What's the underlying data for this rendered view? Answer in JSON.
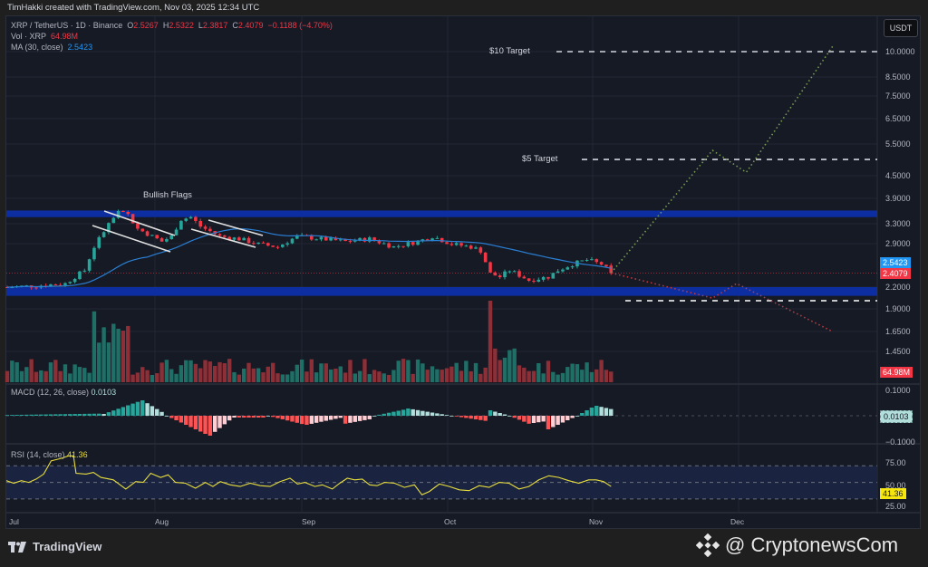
{
  "header": {
    "created_line": "TimHakki created with TradingView.com, Nov 03, 2025 12:34 UTC"
  },
  "legend": {
    "symbol": "XRP / TetherUS · 1D · Binance",
    "o_label": "O",
    "o": "2.5267",
    "h_label": "H",
    "h": "2.5322",
    "l_label": "L",
    "l": "2.3817",
    "c_label": "C",
    "c": "2.4079",
    "change": "−0.1188 (−4.70%)",
    "vol_label": "Vol · XRP",
    "vol": "64.98M",
    "ma_label": "MA (30, close)",
    "ma": "2.5423"
  },
  "currency_button": "USDT",
  "price_axis": {
    "ticks": [
      "10.0000",
      "8.5000",
      "7.5000",
      "6.5000",
      "5.5000",
      "4.5000",
      "3.9000",
      "3.3000",
      "2.9000",
      "2.2000",
      "1.9000",
      "1.6500",
      "1.4500"
    ],
    "badge_ma": "2.5423",
    "badge_close": "2.4079",
    "badge_volume": "64.98M"
  },
  "macd": {
    "title": "MACD (12, 26, close)",
    "value": "0.0103",
    "axis_ticks": [
      "0.1000",
      "−0.1000"
    ],
    "badge": "0.0103"
  },
  "rsi": {
    "title": "RSI (14, close)",
    "value": "41.36",
    "axis_ticks": [
      "75.00",
      "50.00",
      "25.00"
    ],
    "badge": "41.36"
  },
  "time_axis": [
    "Jul",
    "Aug",
    "Sep",
    "Oct",
    "Nov",
    "Dec"
  ],
  "annotations": {
    "bullish_flags": "Bullish Flags",
    "target_10": "$10 Target",
    "target_5": "$5 Target"
  },
  "footer": {
    "brand": "TradingView",
    "watermark": "@ CryptonewsCom"
  },
  "colors": {
    "up": "#26a69a",
    "down": "#f23645",
    "ma": "#2962ff",
    "zone": "#0d2fa8",
    "rsi": "#e8de3c",
    "bg": "#161a25"
  },
  "chart_data": {
    "type": "candlestick",
    "title": "XRP / TetherUS · 1D · Binance",
    "xlabel": "",
    "ylabel": "USDT",
    "x_ticks": [
      "Jul",
      "Aug",
      "Sep",
      "Oct",
      "Nov",
      "Dec"
    ],
    "y_scale": "log",
    "ylim": [
      1.4,
      11
    ],
    "last_bar": {
      "open": 2.5267,
      "high": 2.5322,
      "low": 2.3817,
      "close": 2.4079,
      "change": -0.1188,
      "change_pct": -4.7,
      "volume": "64.98M"
    },
    "ma30_last": 2.5423,
    "price_path": [
      [
        0,
        2.2
      ],
      [
        6,
        2.22
      ],
      [
        12,
        2.25
      ],
      [
        16,
        2.45
      ],
      [
        18,
        2.85
      ],
      [
        21,
        3.3
      ],
      [
        23,
        3.55
      ],
      [
        25,
        3.5
      ],
      [
        27,
        3.2
      ],
      [
        30,
        3.05
      ],
      [
        32,
        2.95
      ],
      [
        34,
        3.05
      ],
      [
        36,
        3.4
      ],
      [
        38,
        3.45
      ],
      [
        40,
        3.25
      ],
      [
        44,
        3.05
      ],
      [
        48,
        3.0
      ],
      [
        52,
        2.9
      ],
      [
        56,
        2.85
      ],
      [
        60,
        3.05
      ],
      [
        65,
        3.0
      ],
      [
        70,
        2.95
      ],
      [
        75,
        3.0
      ],
      [
        80,
        2.85
      ],
      [
        85,
        2.95
      ],
      [
        88,
        3.05
      ],
      [
        92,
        2.9
      ],
      [
        96,
        2.85
      ],
      [
        98,
        2.78
      ],
      [
        100,
        2.4
      ],
      [
        102,
        2.35
      ],
      [
        104,
        2.45
      ],
      [
        108,
        2.3
      ],
      [
        112,
        2.35
      ],
      [
        114,
        2.45
      ],
      [
        117,
        2.55
      ],
      [
        120,
        2.62
      ],
      [
        123,
        2.55
      ],
      [
        125,
        2.41
      ]
    ],
    "resistance_zone": [
      3.45,
      3.6
    ],
    "support_zone": [
      2.08,
      2.2
    ],
    "support_dashed": 1.98,
    "targets": [
      {
        "label": "$5 Target",
        "price": 5.0
      },
      {
        "label": "$10 Target",
        "price": 10.0
      }
    ],
    "projections": {
      "bullish": [
        [
          125,
          2.41
        ],
        [
          146,
          5.3
        ],
        [
          153,
          4.6
        ],
        [
          171,
          10.4
        ]
      ],
      "bearish": [
        [
          125,
          2.41
        ],
        [
          146,
          2.05
        ],
        [
          151,
          2.25
        ],
        [
          171,
          1.65
        ]
      ]
    },
    "annotations": [
      "Bullish Flags",
      "$10 Target",
      "$5 Target"
    ],
    "macd": {
      "params": "12, 26, close",
      "last": 0.0103,
      "ylim": [
        -0.1,
        0.1
      ]
    },
    "rsi": {
      "params": "14, close",
      "last": 41.36,
      "levels": [
        75,
        50,
        25
      ],
      "ylim": [
        20,
        90
      ]
    }
  }
}
